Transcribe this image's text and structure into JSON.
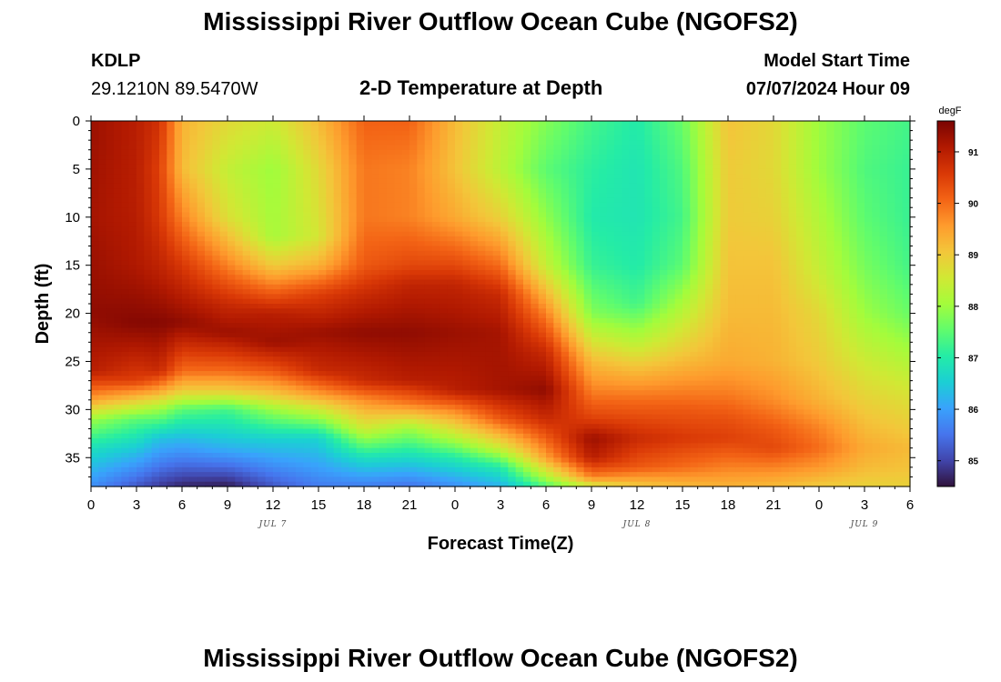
{
  "header": {
    "title": "Mississippi River Outflow Ocean Cube (NGOFS2)",
    "station": "KDLP",
    "coords": "29.1210N  89.5470W",
    "plot_title": "2-D Temperature at Depth",
    "model_start_label": "Model Start Time",
    "model_start_value": "07/07/2024 Hour 09"
  },
  "footer": {
    "title": "Mississippi River Outflow Ocean Cube (NGOFS2)"
  },
  "colors": {
    "scale": [
      "#30123b",
      "#4145ab",
      "#4675ed",
      "#39a2fc",
      "#1bcfd4",
      "#24eca6",
      "#61fc6c",
      "#a4fc3b",
      "#d1e834",
      "#f3c63a",
      "#fe9b2d",
      "#f36315",
      "#d93806",
      "#b11901",
      "#7a0402"
    ]
  },
  "chart_data": {
    "type": "heatmap",
    "title": "2-D Temperature at Depth",
    "xlabel": "Forecast Time(Z)",
    "ylabel": "Depth (ft)",
    "x_unit": "hours since 07/07/2024 00Z",
    "xlim": [
      0,
      54
    ],
    "x_ticks": [
      0,
      3,
      6,
      9,
      12,
      15,
      18,
      21,
      24,
      27,
      30,
      33,
      36,
      39,
      42,
      45,
      48,
      51,
      54
    ],
    "x_tick_labels": [
      "0",
      "3",
      "6",
      "9",
      "12",
      "15",
      "18",
      "21",
      "0",
      "3",
      "6",
      "9",
      "12",
      "15",
      "18",
      "21",
      "0",
      "3",
      "6"
    ],
    "date_labels": [
      {
        "x": 12,
        "label": "JUL 7"
      },
      {
        "x": 36,
        "label": "JUL 8"
      },
      {
        "x": 51,
        "label": "JUL 9"
      }
    ],
    "ylim": [
      0,
      38
    ],
    "y_ticks": [
      0,
      5,
      10,
      15,
      20,
      25,
      30,
      35
    ],
    "colorbar": {
      "unit": "degF",
      "range": [
        84.5,
        91.6
      ],
      "ticks": [
        85,
        86,
        87,
        88,
        89,
        90,
        91
      ]
    },
    "columns": [
      {
        "x": 0,
        "profile": [
          [
            0,
            91.3
          ],
          [
            10,
            91.2
          ],
          [
            20,
            91.4
          ],
          [
            26,
            91.0
          ],
          [
            29,
            89.5
          ],
          [
            31,
            88.0
          ],
          [
            34,
            86.8
          ],
          [
            38,
            85.8
          ]
        ]
      },
      {
        "x": 3,
        "profile": [
          [
            0,
            91.0
          ],
          [
            8,
            91.0
          ],
          [
            15,
            91.1
          ],
          [
            21,
            91.5
          ],
          [
            27,
            90.5
          ],
          [
            29,
            89.0
          ],
          [
            31,
            87.5
          ],
          [
            34,
            86.5
          ],
          [
            38,
            85.2
          ]
        ]
      },
      {
        "x": 4.5,
        "profile": [
          [
            0,
            90.7
          ],
          [
            5,
            90.5
          ],
          [
            10,
            90.6
          ],
          [
            16,
            91.0
          ],
          [
            21,
            91.5
          ],
          [
            26,
            90.8
          ],
          [
            28,
            89.5
          ],
          [
            30,
            88.0
          ],
          [
            33,
            86.4
          ],
          [
            38,
            84.9
          ]
        ]
      },
      {
        "x": 6,
        "profile": [
          [
            0,
            89.3
          ],
          [
            5,
            89.2
          ],
          [
            10,
            89.8
          ],
          [
            15,
            90.6
          ],
          [
            21,
            91.4
          ],
          [
            26,
            90.0
          ],
          [
            28,
            89.0
          ],
          [
            30,
            87.5
          ],
          [
            33,
            86.3
          ],
          [
            38,
            84.7
          ]
        ]
      },
      {
        "x": 9,
        "profile": [
          [
            0,
            88.8
          ],
          [
            5,
            88.4
          ],
          [
            10,
            88.7
          ],
          [
            15,
            89.8
          ],
          [
            19,
            90.8
          ],
          [
            22,
            91.3
          ],
          [
            26,
            90.0
          ],
          [
            28,
            89.0
          ],
          [
            30,
            87.3
          ],
          [
            34,
            86.2
          ],
          [
            38,
            84.6
          ]
        ]
      },
      {
        "x": 12,
        "profile": [
          [
            0,
            88.5
          ],
          [
            5,
            88.0
          ],
          [
            12,
            88.1
          ],
          [
            15,
            89.0
          ],
          [
            17,
            89.8
          ],
          [
            20,
            91.0
          ],
          [
            23,
            91.3
          ],
          [
            26,
            90.2
          ],
          [
            28.5,
            89.0
          ],
          [
            30,
            88.0
          ],
          [
            33,
            86.6
          ],
          [
            38,
            85.2
          ]
        ]
      },
      {
        "x": 15,
        "profile": [
          [
            0,
            89.2
          ],
          [
            5,
            88.8
          ],
          [
            12,
            88.6
          ],
          [
            15,
            89.3
          ],
          [
            18,
            90.5
          ],
          [
            22,
            91.3
          ],
          [
            26,
            90.8
          ],
          [
            28.5,
            89.5
          ],
          [
            30,
            88.5
          ],
          [
            33,
            86.6
          ],
          [
            38,
            85.6
          ]
        ]
      },
      {
        "x": 18,
        "profile": [
          [
            0,
            90.1
          ],
          [
            5,
            89.9
          ],
          [
            10,
            89.9
          ],
          [
            15,
            90.2
          ],
          [
            18,
            90.8
          ],
          [
            22,
            91.4
          ],
          [
            27,
            90.8
          ],
          [
            29,
            89.7
          ],
          [
            32,
            88.5
          ],
          [
            35,
            86.8
          ],
          [
            38,
            85.6
          ]
        ]
      },
      {
        "x": 21,
        "profile": [
          [
            0,
            90.1
          ],
          [
            5,
            89.8
          ],
          [
            10,
            89.8
          ],
          [
            15,
            90.4
          ],
          [
            17,
            90.9
          ],
          [
            22,
            91.4
          ],
          [
            27,
            91.0
          ],
          [
            29.5,
            89.8
          ],
          [
            32,
            88.0
          ],
          [
            35,
            86.7
          ],
          [
            38,
            85.5
          ]
        ]
      },
      {
        "x": 24,
        "profile": [
          [
            0,
            89.2
          ],
          [
            5,
            89.1
          ],
          [
            10,
            89.4
          ],
          [
            15,
            90.4
          ],
          [
            17,
            90.9
          ],
          [
            22,
            91.3
          ],
          [
            28,
            91.0
          ],
          [
            30,
            89.8
          ],
          [
            33,
            88.2
          ],
          [
            35,
            87.0
          ],
          [
            38,
            85.8
          ]
        ]
      },
      {
        "x": 27,
        "profile": [
          [
            0,
            88.4
          ],
          [
            5,
            88.3
          ],
          [
            10,
            88.9
          ],
          [
            15,
            90.0
          ],
          [
            18,
            90.8
          ],
          [
            22,
            91.2
          ],
          [
            28,
            91.2
          ],
          [
            31,
            90.2
          ],
          [
            34,
            88.5
          ],
          [
            36,
            87.0
          ],
          [
            38,
            86.2
          ]
        ]
      },
      {
        "x": 30,
        "profile": [
          [
            0,
            87.8
          ],
          [
            5,
            87.5
          ],
          [
            10,
            87.9
          ],
          [
            15,
            88.4
          ],
          [
            20,
            89.8
          ],
          [
            24,
            90.8
          ],
          [
            28,
            91.4
          ],
          [
            31,
            90.8
          ],
          [
            35,
            89.5
          ],
          [
            37,
            88.2
          ],
          [
            38,
            87.4
          ]
        ]
      },
      {
        "x": 33,
        "profile": [
          [
            0,
            87.3
          ],
          [
            5,
            87.1
          ],
          [
            10,
            87.0
          ],
          [
            15,
            87.2
          ],
          [
            20,
            87.8
          ],
          [
            25,
            89.2
          ],
          [
            28,
            89.8
          ],
          [
            31,
            90.5
          ],
          [
            33,
            91.3
          ],
          [
            35,
            91.0
          ],
          [
            37,
            89.8
          ],
          [
            38,
            88.5
          ]
        ]
      },
      {
        "x": 36,
        "profile": [
          [
            0,
            87.0
          ],
          [
            5,
            86.9
          ],
          [
            10,
            86.9
          ],
          [
            15,
            87.0
          ],
          [
            19,
            87.3
          ],
          [
            23,
            88.3
          ],
          [
            26,
            89.2
          ],
          [
            29,
            90.0
          ],
          [
            33,
            90.8
          ],
          [
            36,
            90.2
          ],
          [
            38,
            89.0
          ]
        ]
      },
      {
        "x": 39,
        "profile": [
          [
            0,
            87.6
          ],
          [
            5,
            87.4
          ],
          [
            10,
            87.3
          ],
          [
            15,
            87.5
          ],
          [
            20,
            88.3
          ],
          [
            24,
            89.0
          ],
          [
            27,
            89.6
          ],
          [
            30,
            90.2
          ],
          [
            33,
            90.6
          ],
          [
            36,
            90.0
          ],
          [
            38,
            89.2
          ]
        ]
      },
      {
        "x": 42,
        "profile": [
          [
            0,
            89.1
          ],
          [
            5,
            89.0
          ],
          [
            10,
            89.0
          ],
          [
            15,
            89.1
          ],
          [
            20,
            89.2
          ],
          [
            25,
            89.4
          ],
          [
            28,
            89.8
          ],
          [
            31,
            90.3
          ],
          [
            33,
            90.5
          ],
          [
            36,
            89.8
          ],
          [
            38,
            89.3
          ]
        ]
      },
      {
        "x": 45,
        "profile": [
          [
            0,
            88.8
          ],
          [
            5,
            88.8
          ],
          [
            10,
            88.9
          ],
          [
            15,
            89.1
          ],
          [
            20,
            89.2
          ],
          [
            25,
            89.3
          ],
          [
            29,
            89.7
          ],
          [
            32,
            90.2
          ],
          [
            34,
            90.4
          ],
          [
            36,
            89.8
          ],
          [
            38,
            89.2
          ]
        ]
      },
      {
        "x": 48,
        "profile": [
          [
            0,
            88.0
          ],
          [
            5,
            88.0
          ],
          [
            10,
            88.2
          ],
          [
            15,
            88.4
          ],
          [
            20,
            88.8
          ],
          [
            25,
            89.0
          ],
          [
            29,
            89.3
          ],
          [
            32,
            89.8
          ],
          [
            34,
            90.0
          ],
          [
            36,
            89.6
          ],
          [
            38,
            89.0
          ]
        ]
      },
      {
        "x": 51,
        "profile": [
          [
            0,
            87.5
          ],
          [
            5,
            87.4
          ],
          [
            10,
            87.5
          ],
          [
            15,
            87.7
          ],
          [
            20,
            88.0
          ],
          [
            25,
            88.5
          ],
          [
            29,
            88.9
          ],
          [
            32,
            89.2
          ],
          [
            34,
            89.4
          ],
          [
            36,
            89.2
          ],
          [
            38,
            88.9
          ]
        ]
      },
      {
        "x": 54,
        "profile": [
          [
            0,
            87.3
          ],
          [
            5,
            87.2
          ],
          [
            10,
            87.2
          ],
          [
            15,
            87.3
          ],
          [
            20,
            87.6
          ],
          [
            25,
            88.2
          ],
          [
            29,
            88.7
          ],
          [
            32,
            89.0
          ],
          [
            34,
            89.2
          ],
          [
            36,
            89.1
          ],
          [
            38,
            88.9
          ]
        ]
      }
    ]
  }
}
